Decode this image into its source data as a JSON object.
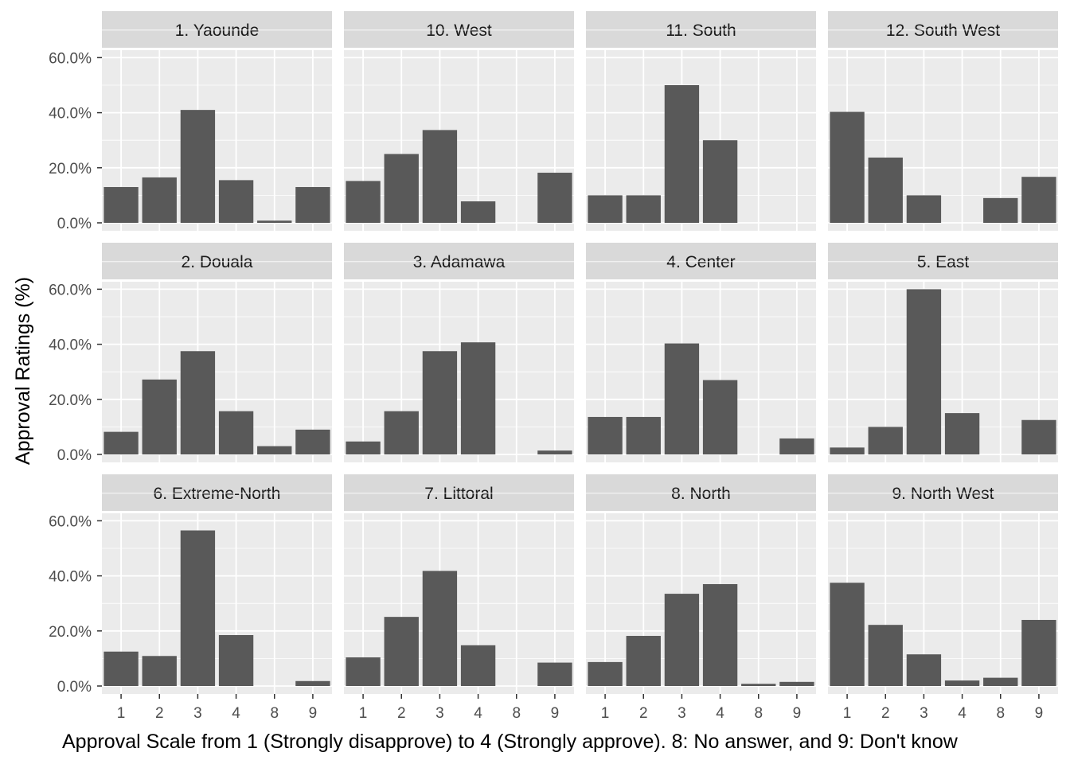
{
  "chart_data": {
    "type": "bar",
    "layout": "facet_wrap",
    "xlabel": "Approval Scale from 1 (Strongly disapprove) to 4 (Strongly approve). 8: No answer, and 9: Don't know",
    "ylabel": "Approval Ratings (%)",
    "categories": [
      "1",
      "2",
      "3",
      "4",
      "8",
      "9"
    ],
    "yticks": [
      "0.0%",
      "20.0%",
      "40.0%",
      "60.0%"
    ],
    "ylim": [
      0,
      0.75
    ],
    "grid": true,
    "panel_background": "#ebebeb",
    "strip_background": "#d9d9d9",
    "bar_color": "#595959",
    "grid_color": "#ffffff",
    "panels": [
      {
        "title": "1. Yaounde",
        "values": [
          0.13,
          0.165,
          0.41,
          0.155,
          0.008,
          0.13
        ]
      },
      {
        "title": "10. West",
        "values": [
          0.152,
          0.25,
          0.337,
          0.078,
          0,
          0.182
        ]
      },
      {
        "title": "11. South",
        "values": [
          0.1,
          0.1,
          0.5,
          0.3,
          0,
          0
        ]
      },
      {
        "title": "12. South West",
        "values": [
          0.403,
          0.237,
          0.1,
          0,
          0.09,
          0.167
        ]
      },
      {
        "title": "2. Douala",
        "values": [
          0.082,
          0.272,
          0.375,
          0.157,
          0.03,
          0.09
        ]
      },
      {
        "title": "3. Adamawa",
        "values": [
          0.047,
          0.157,
          0.375,
          0.407,
          0,
          0.014
        ]
      },
      {
        "title": "4. Center",
        "values": [
          0.136,
          0.136,
          0.403,
          0.27,
          0,
          0.058
        ]
      },
      {
        "title": "5. East",
        "values": [
          0.025,
          0.1,
          0.6,
          0.15,
          0,
          0.125
        ]
      },
      {
        "title": "6. Extreme-North",
        "values": [
          0.125,
          0.109,
          0.565,
          0.185,
          0,
          0.018
        ]
      },
      {
        "title": "7. Littoral",
        "values": [
          0.104,
          0.251,
          0.418,
          0.148,
          0,
          0.085
        ]
      },
      {
        "title": "8. North",
        "values": [
          0.087,
          0.182,
          0.335,
          0.37,
          0.008,
          0.015
        ]
      },
      {
        "title": "9. North West",
        "values": [
          0.375,
          0.222,
          0.115,
          0.02,
          0.03,
          0.24
        ]
      }
    ]
  }
}
